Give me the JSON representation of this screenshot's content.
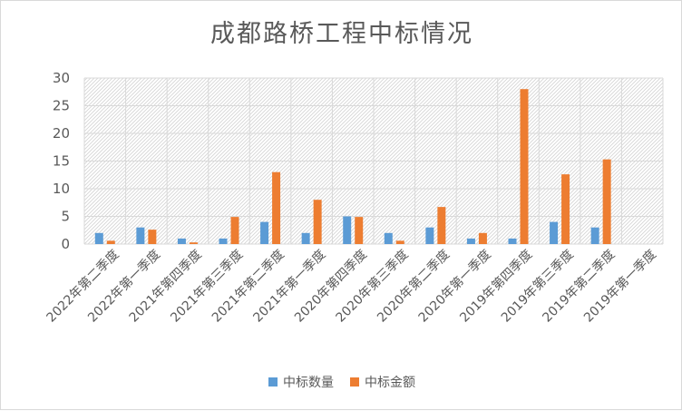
{
  "chart_data": {
    "type": "bar",
    "title": "成都路桥工程中标情况",
    "categories": [
      "2022年第二季度",
      "2022年第一季度",
      "2021年第四季度",
      "2021年第三季度",
      "2021年第二季度",
      "2021年第一季度",
      "2020年第四季度",
      "2020年第三季度",
      "2020年第二季度",
      "2020年第一季度",
      "2019年第四季度",
      "2019年第三季度",
      "2019年第二季度",
      "2019年第一季度"
    ],
    "series": [
      {
        "name": "中标数量",
        "color": "#5b9bd5",
        "values": [
          2,
          3,
          1,
          1,
          4,
          2,
          5,
          2,
          3,
          1,
          1,
          4,
          3,
          0
        ]
      },
      {
        "name": "中标金额",
        "color": "#ed7d31",
        "values": [
          0.6,
          2.6,
          0.3,
          4.9,
          13,
          8,
          4.9,
          0.6,
          6.7,
          2,
          28,
          12.6,
          15.3,
          0
        ]
      }
    ],
    "ylim": [
      0,
      30
    ],
    "yticks": [
      0,
      5,
      10,
      15,
      20,
      25,
      30
    ],
    "xlabel": "",
    "ylabel": "",
    "legend_position": "bottom",
    "grid": true
  }
}
